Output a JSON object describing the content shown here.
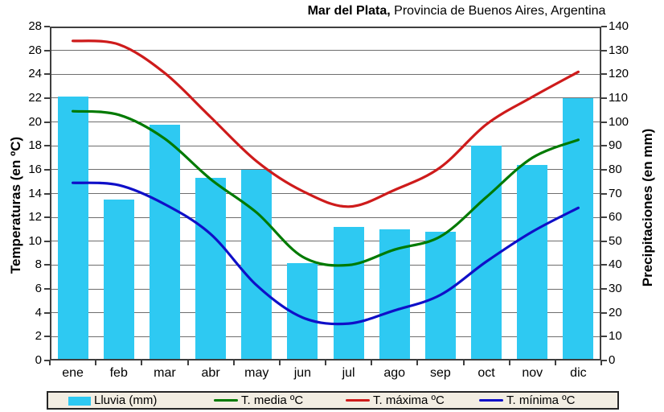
{
  "title": {
    "place": "Mar del Plata,",
    "region": " Provincia de Buenos Aires, Argentina"
  },
  "left_axis": {
    "title": "Temperaturas (en ºC)",
    "min": 0,
    "max": 28,
    "step": 2
  },
  "right_axis": {
    "title": "Precipitaciones (en mm)",
    "min": 0,
    "max": 140,
    "step": 10
  },
  "legend": {
    "items": [
      {
        "label": "Lluvia (mm)",
        "type": "bar",
        "color": "#2ec9f2"
      },
      {
        "label": "T. media ºC",
        "type": "line",
        "color": "#007a00"
      },
      {
        "label": "T. máxima ºC",
        "type": "line",
        "color": "#ce1b1b"
      },
      {
        "label": "T. mínima ºC",
        "type": "line",
        "color": "#0f0fc8"
      }
    ]
  },
  "colors": {
    "bar": "#2ec9f2",
    "t_media": "#007a00",
    "t_maxima": "#ce1b1b",
    "t_minima": "#0f0fc8",
    "gridline": "#6e6e6e",
    "plot_border": "#3f3f3f",
    "legend_bg": "#f2ede2"
  },
  "chart_data": {
    "type": "combo",
    "title": "Mar del Plata, Provincia de Buenos Aires, Argentina",
    "categories": [
      "ene",
      "feb",
      "mar",
      "abr",
      "may",
      "jun",
      "jul",
      "ago",
      "sep",
      "oct",
      "nov",
      "dic"
    ],
    "series": [
      {
        "name": "Lluvia (mm)",
        "type": "bar",
        "axis": "right",
        "unit": "mm",
        "color": "#2ec9f2",
        "values": [
          110.5,
          67.5,
          99,
          76.5,
          80,
          41,
          56,
          55,
          54,
          90,
          82,
          110
        ]
      },
      {
        "name": "T. máxima ºC",
        "type": "line",
        "axis": "left",
        "unit": "ºC",
        "color": "#ce1b1b",
        "values": [
          26.8,
          26.5,
          24.1,
          20.4,
          16.7,
          14.2,
          12.9,
          14.3,
          16.2,
          19.8,
          22.1,
          24.2
        ]
      },
      {
        "name": "T. media ºC",
        "type": "line",
        "axis": "left",
        "unit": "ºC",
        "color": "#007a00",
        "values": [
          20.9,
          20.6,
          18.6,
          15.2,
          12.4,
          8.7,
          8.0,
          9.3,
          10.4,
          13.7,
          17.0,
          18.5
        ]
      },
      {
        "name": "T. mínima ºC",
        "type": "line",
        "axis": "left",
        "unit": "ºC",
        "color": "#0f0fc8",
        "values": [
          14.9,
          14.7,
          13.1,
          10.6,
          6.3,
          3.6,
          3.1,
          4.2,
          5.5,
          8.3,
          10.8,
          12.8
        ]
      }
    ],
    "left_ylabel": "Temperaturas (en ºC)",
    "right_ylabel": "Precipitaciones (en mm)",
    "left_ylim": [
      0,
      28
    ],
    "right_ylim": [
      0,
      140
    ],
    "grid": true,
    "legend_position": "bottom"
  }
}
